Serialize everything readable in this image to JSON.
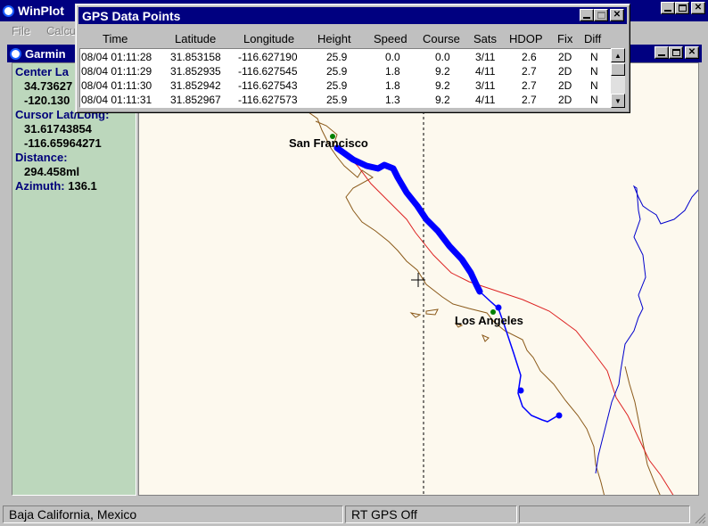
{
  "main_window": {
    "title": "WinPlot"
  },
  "menu": {
    "items": [
      "File",
      "Calcu"
    ]
  },
  "map_window": {
    "title": "Garmin"
  },
  "side_panel": {
    "center_label": "Center La",
    "center_lat": "34.73627",
    "center_long": "-120.130",
    "cursor_label": "Cursor Lat/Long:",
    "cursor_lat": "31.61743854",
    "cursor_long": "-116.65964271",
    "distance_label": "Distance:",
    "distance_value": "294.458ml",
    "azimuth_label": "Azimuth:",
    "azimuth_value": "136.1"
  },
  "map": {
    "labels": {
      "sf": "San Francisco",
      "la": "Los Angeles"
    },
    "colors": {
      "track": "#0000ff",
      "coast": "#8b5a1a",
      "border": "#dd2222",
      "background": "#fdf9ee"
    }
  },
  "gps_window": {
    "title": "GPS Data Points",
    "columns": [
      "Time",
      "Latitude",
      "Longitude",
      "Height",
      "Speed",
      "Course",
      "Sats",
      "HDOP",
      "Fix",
      "Diff"
    ],
    "rows": [
      [
        "08/04 01:11:28",
        "31.853158",
        "-116.627190",
        "25.9",
        "0.0",
        "0.0",
        "3/11",
        "2.6",
        "2D",
        "N"
      ],
      [
        "08/04 01:11:29",
        "31.852935",
        "-116.627545",
        "25.9",
        "1.8",
        "9.2",
        "4/11",
        "2.7",
        "2D",
        "N"
      ],
      [
        "08/04 01:11:30",
        "31.852942",
        "-116.627543",
        "25.9",
        "1.8",
        "9.2",
        "3/11",
        "2.7",
        "2D",
        "N"
      ],
      [
        "08/04 01:11:31",
        "31.852967",
        "-116.627573",
        "25.9",
        "1.3",
        "9.2",
        "4/11",
        "2.7",
        "2D",
        "N"
      ]
    ]
  },
  "status_bar": {
    "location": "Baja California, Mexico",
    "gps_status": "RT GPS Off"
  }
}
